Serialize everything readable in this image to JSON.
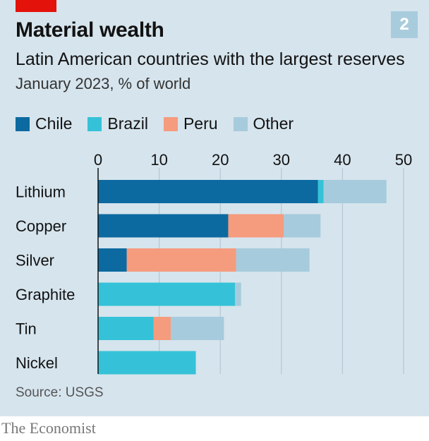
{
  "header": {
    "title": "Material wealth",
    "chart_number": "2",
    "subtitle": "Latin American countries with the largest reserves",
    "note": "January 2023, % of world"
  },
  "footer": {
    "source": "Source: USGS",
    "brand": "The Economist"
  },
  "colors": {
    "Chile": "#0d6aa0",
    "Brazil": "#35c2d8",
    "Peru": "#f59b7e",
    "Other": "#a6cbdd",
    "brand_red": "#e3120b"
  },
  "chart_data": {
    "type": "bar",
    "orientation": "horizontal",
    "stacked": true,
    "title": "Material wealth",
    "subtitle": "Latin American countries with the largest reserves",
    "unit": "January 2023, % of world",
    "categories": [
      "Lithium",
      "Copper",
      "Silver",
      "Graphite",
      "Tin",
      "Nickel"
    ],
    "series": [
      {
        "name": "Chile",
        "values": [
          36,
          21.3,
          4.7,
          0,
          0,
          0
        ]
      },
      {
        "name": "Brazil",
        "values": [
          0.9,
          0,
          0,
          22.4,
          9.1,
          16
        ]
      },
      {
        "name": "Peru",
        "values": [
          0,
          9.1,
          17.9,
          0,
          2.8,
          0
        ]
      },
      {
        "name": "Other",
        "values": [
          10.3,
          6,
          12,
          1,
          8.7,
          0
        ]
      }
    ],
    "xlim": [
      0,
      50
    ],
    "xticks": [
      0,
      10,
      20,
      30,
      40,
      50
    ],
    "grid": true,
    "legend_position": "top-left"
  }
}
